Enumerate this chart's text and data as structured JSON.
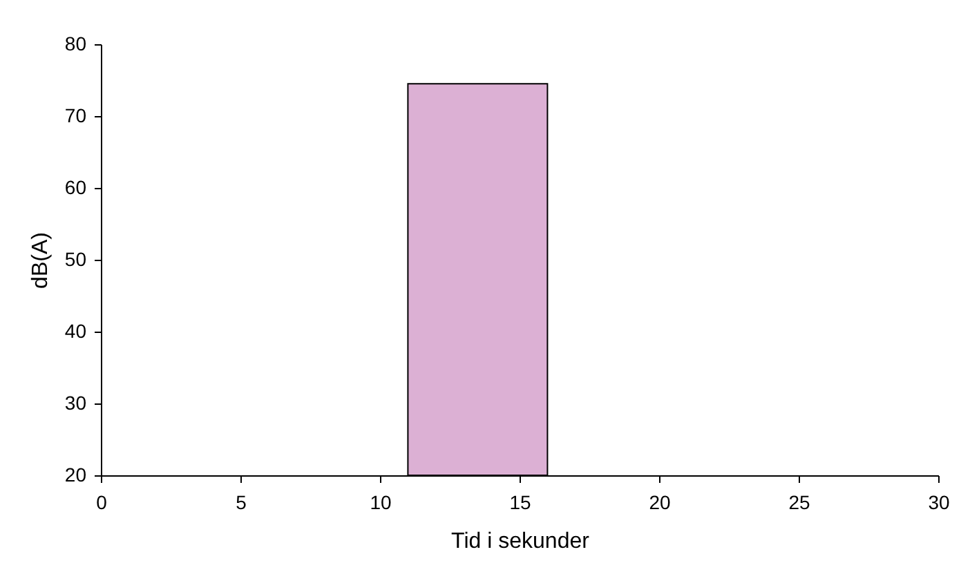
{
  "chart_data": {
    "type": "area",
    "xlabel": "Tid i sekunder",
    "ylabel": "dB(A)",
    "x": [
      11,
      16
    ],
    "values": [
      74.5,
      74.5
    ],
    "color": "#dcb0d4",
    "xlim": [
      0,
      30
    ],
    "xticks": [
      0,
      5,
      10,
      15,
      20,
      25,
      30
    ],
    "ylim": [
      20,
      80
    ],
    "yticks": [
      20,
      30,
      40,
      50,
      60,
      70,
      80
    ],
    "grid": false
  }
}
